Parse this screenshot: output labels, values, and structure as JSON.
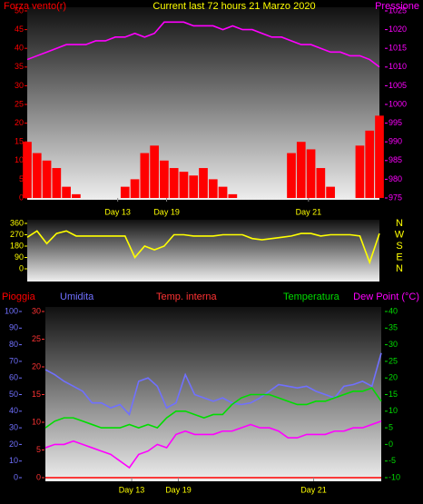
{
  "chart_data": [
    {
      "type": "bar-line",
      "title": "Current last 72 hours 21 Marzo 2020",
      "x": [
        0,
        2,
        4,
        6,
        8,
        10,
        12,
        14,
        16,
        18,
        20,
        22,
        24,
        26,
        28,
        30,
        32,
        34,
        36,
        38,
        40,
        42,
        44,
        46,
        48,
        50,
        52,
        54,
        56,
        58,
        60,
        62,
        64,
        66,
        68,
        70,
        72
      ],
      "xlim": [
        0,
        72
      ],
      "xticks": [
        {
          "value": 18.5,
          "label": "Day 13"
        },
        {
          "value": 28.5,
          "label": "Day 19"
        },
        {
          "value": 57.5,
          "label": "Day 21"
        }
      ],
      "ylim": [
        0,
        50
      ],
      "yticks": [
        0,
        5,
        10,
        15,
        20,
        25,
        30,
        35,
        40,
        45,
        50
      ],
      "y2lim": [
        975,
        1025
      ],
      "y2ticks": [
        975,
        980,
        985,
        990,
        995,
        1000,
        1005,
        1010,
        1015,
        1020,
        1025
      ],
      "series": [
        {
          "name": "Forza vento(r)",
          "color": "#ff0000",
          "axis": "y",
          "values": [
            15,
            12,
            10,
            8,
            3,
            1,
            0,
            0,
            0,
            0,
            3,
            5,
            12,
            14,
            10,
            8,
            7,
            6,
            8,
            5,
            3,
            1,
            0,
            0,
            0,
            0,
            0,
            12,
            15,
            13,
            8,
            3,
            0,
            0,
            14,
            18,
            22
          ]
        },
        {
          "name": "Pressione",
          "color": "#ff00ff",
          "axis": "y2",
          "values": [
            1012,
            1013,
            1014,
            1015,
            1016,
            1016,
            1016,
            1017,
            1017,
            1018,
            1018,
            1019,
            1018,
            1019,
            1022,
            1022,
            1022,
            1021,
            1021,
            1021,
            1020,
            1021,
            1020,
            1020,
            1019,
            1018,
            1018,
            1017,
            1016,
            1016,
            1015,
            1014,
            1014,
            1013,
            1013,
            1012,
            1010
          ]
        }
      ]
    },
    {
      "type": "line",
      "x": [
        0,
        2,
        4,
        6,
        8,
        10,
        12,
        14,
        16,
        18,
        20,
        22,
        24,
        26,
        28,
        30,
        32,
        34,
        36,
        38,
        40,
        42,
        44,
        46,
        48,
        50,
        52,
        54,
        56,
        58,
        60,
        62,
        64,
        66,
        68,
        70,
        72
      ],
      "xlim": [
        0,
        72
      ],
      "ylim": [
        0,
        360
      ],
      "yticks": [
        0,
        90,
        180,
        270,
        360
      ],
      "direction_labels": [
        "N",
        "W",
        "S",
        "E",
        "N"
      ],
      "series": [
        {
          "color": "#ffff00",
          "values": [
            250,
            300,
            200,
            280,
            300,
            260,
            260,
            260,
            260,
            260,
            260,
            90,
            180,
            150,
            180,
            270,
            270,
            260,
            260,
            260,
            270,
            270,
            270,
            240,
            230,
            240,
            250,
            260,
            280,
            280,
            260,
            270,
            270,
            270,
            260,
            50,
            280
          ]
        }
      ]
    },
    {
      "type": "line",
      "x": [
        0,
        2,
        4,
        6,
        8,
        10,
        12,
        14,
        16,
        18,
        20,
        22,
        24,
        26,
        28,
        30,
        32,
        34,
        36,
        38,
        40,
        42,
        44,
        46,
        48,
        50,
        52,
        54,
        56,
        58,
        60,
        62,
        64,
        66,
        68,
        70,
        72
      ],
      "xlim": [
        0,
        72
      ],
      "xticks": [
        {
          "value": 18.5,
          "label": "Day 13"
        },
        {
          "value": 28.5,
          "label": "Day 19"
        },
        {
          "value": 57.5,
          "label": "Day 21"
        }
      ],
      "ylim": [
        0,
        100
      ],
      "yticks": [
        0,
        10,
        20,
        30,
        40,
        50,
        60,
        70,
        80,
        90,
        100
      ],
      "y3lim": [
        0,
        30
      ],
      "y3ticks": [
        0,
        5,
        10,
        15,
        20,
        25,
        30
      ],
      "y2lim": [
        -10,
        40
      ],
      "y2ticks": [
        -10,
        -5,
        0,
        5,
        10,
        15,
        20,
        25,
        30,
        35,
        40
      ],
      "legend_only": "Temp. interna",
      "series": [
        {
          "name": "Pioggia",
          "color": "#ff0000",
          "axis": "y3",
          "values": [
            0,
            0,
            0,
            0,
            0,
            0,
            0,
            0,
            0,
            0,
            0,
            0,
            0,
            0,
            0,
            0,
            0,
            0,
            0,
            0,
            0,
            0,
            0,
            0,
            0,
            0,
            0,
            0,
            0,
            0,
            0,
            0,
            0,
            0,
            0,
            0,
            0
          ]
        },
        {
          "name": "Umidita",
          "color": "#7070ff",
          "axis": "y",
          "values": [
            65,
            62,
            58,
            55,
            52,
            45,
            45,
            42,
            44,
            38,
            58,
            60,
            55,
            42,
            45,
            62,
            50,
            48,
            46,
            48,
            45,
            44,
            45,
            48,
            52,
            56,
            55,
            54,
            55,
            52,
            50,
            48,
            55,
            56,
            58,
            55,
            75
          ]
        },
        {
          "name": "Temperatura",
          "color": "#00dd00",
          "axis": "y2",
          "values": [
            5,
            7,
            8,
            8,
            7,
            6,
            5,
            5,
            5,
            6,
            5,
            6,
            5,
            8,
            10,
            10,
            9,
            8,
            9,
            9,
            12,
            14,
            15,
            15,
            15,
            14,
            13,
            12,
            12,
            13,
            13,
            14,
            15,
            16,
            16,
            17,
            13
          ]
        },
        {
          "name": "Dew Point (°C)",
          "color": "#ff00ff",
          "axis": "y2",
          "values": [
            -1,
            0,
            0,
            1,
            0,
            -1,
            -2,
            -3,
            -5,
            -7,
            -3,
            -2,
            0,
            -1,
            3,
            4,
            3,
            3,
            3,
            4,
            4,
            5,
            6,
            5,
            5,
            4,
            2,
            2,
            3,
            3,
            3,
            4,
            4,
            5,
            5,
            6,
            7
          ]
        }
      ]
    }
  ]
}
